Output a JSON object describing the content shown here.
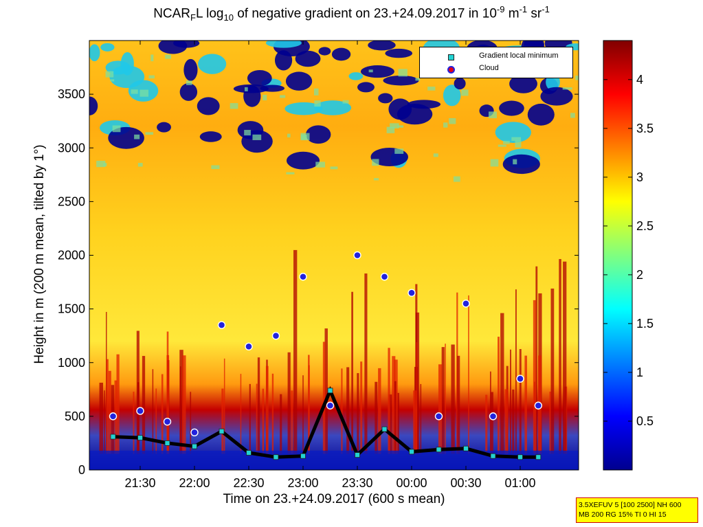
{
  "title": {
    "prefix": "NCAR",
    "sub1": "F",
    "mid": "L log",
    "sub2": "10",
    "rest": " of negative gradient on 23.+24.09.2017 in 10",
    "sup1": "-9",
    "unit1": " m",
    "sup2": "-1",
    "unit2": " sr",
    "sup3": "-1"
  },
  "info_box": {
    "line1": "3.5XEFUV 5 [100 2500] NH 600",
    "line2": "MB 200 RG 15% TI 0 HI 15"
  },
  "legend": {
    "item1": "Gradient local minimum",
    "item2": "Cloud"
  },
  "chart_data": {
    "type": "heatmap",
    "title": "NCAR_F L log10 of negative gradient on 23.+24.09.2017 in 10^-9 m^-1 sr^-1",
    "xlabel": "Time on 23.+24.09.2017 (600 s mean)",
    "ylabel": "Height in m (200 m mean, tilted by 1°)",
    "x_ticks": [
      "21:30",
      "22:00",
      "22:30",
      "23:00",
      "23:30",
      "00:00",
      "00:30",
      "01:00"
    ],
    "y_ticks": [
      "0",
      "500",
      "1000",
      "1500",
      "2000",
      "2500",
      "3000",
      "3500"
    ],
    "colorbar_ticks": [
      "0.5",
      "1",
      "1.5",
      "2",
      "2.5",
      "3",
      "3.5",
      "4"
    ],
    "colorbar_range": [
      0,
      4.4
    ],
    "ylim": [
      0,
      4000
    ],
    "colormap": "jet",
    "legend_position": "top-right",
    "series": [
      {
        "name": "Gradient local minimum",
        "marker": "square",
        "color": "#22d3d3",
        "x": [
          "21:15",
          "21:30",
          "21:45",
          "22:00",
          "22:15",
          "22:30",
          "22:45",
          "23:00",
          "23:15",
          "23:30",
          "23:45",
          "00:00",
          "00:15",
          "00:30",
          "00:45",
          "01:00",
          "01:10"
        ],
        "y": [
          310,
          300,
          250,
          220,
          360,
          160,
          120,
          130,
          740,
          140,
          380,
          170,
          190,
          200,
          130,
          120,
          120
        ]
      },
      {
        "name": "Cloud",
        "marker": "circle",
        "color": "#e0001a",
        "x": [
          "21:15",
          "21:30",
          "21:45",
          "22:00",
          "22:15",
          "22:30",
          "22:45",
          "23:00",
          "23:15",
          "23:30",
          "23:45",
          "00:00",
          "00:15",
          "00:30",
          "00:45",
          "01:00",
          "01:10"
        ],
        "y": [
          500,
          550,
          450,
          350,
          1350,
          1150,
          1250,
          1800,
          600,
          2000,
          1800,
          1650,
          500,
          1550,
          500,
          850,
          600
        ]
      }
    ]
  }
}
